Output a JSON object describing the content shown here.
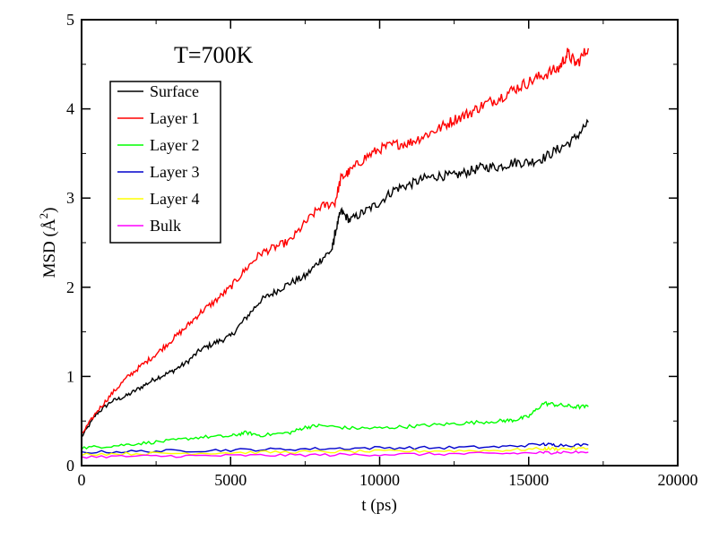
{
  "chart_data": {
    "type": "line",
    "title": "",
    "annotation": "T=700K",
    "xlabel": "t (ps)",
    "ylabel": "MSD (Å²)",
    "ylabel_parts": {
      "main": "MSD (",
      "unit_base": "Å",
      "unit_sup": "2",
      "close": ")"
    },
    "xlim": [
      0,
      20000
    ],
    "ylim": [
      0,
      5
    ],
    "x_ticks": [
      0,
      5000,
      10000,
      15000,
      20000
    ],
    "x_tick_labels": [
      "0",
      "5000",
      "10000",
      "15000",
      "20000"
    ],
    "y_ticks": [
      0,
      1,
      2,
      3,
      4,
      5
    ],
    "y_tick_labels": [
      "0",
      "1",
      "2",
      "3",
      "4",
      "5"
    ],
    "grid": false,
    "legend_position": "upper-left",
    "series": [
      {
        "name": "Surface",
        "color": "#000000",
        "x": [
          0,
          500,
          1000,
          1500,
          2000,
          2500,
          3000,
          3500,
          4000,
          4500,
          5000,
          5500,
          6000,
          6500,
          7000,
          7500,
          8000,
          8400,
          8500,
          8700,
          9000,
          9500,
          10000,
          10500,
          11000,
          11500,
          12000,
          12500,
          13000,
          13500,
          14000,
          14500,
          15000,
          15500,
          16000,
          16500,
          17000
        ],
        "y": [
          0.32,
          0.58,
          0.72,
          0.78,
          0.88,
          0.98,
          1.05,
          1.15,
          1.3,
          1.38,
          1.45,
          1.65,
          1.85,
          1.95,
          2.05,
          2.12,
          2.3,
          2.42,
          2.6,
          2.85,
          2.75,
          2.85,
          2.95,
          3.1,
          3.15,
          3.22,
          3.25,
          3.25,
          3.3,
          3.35,
          3.35,
          3.4,
          3.4,
          3.45,
          3.55,
          3.65,
          3.85
        ]
      },
      {
        "name": "Layer 1",
        "color": "#ff0000",
        "x": [
          0,
          500,
          1000,
          1500,
          2000,
          2500,
          3000,
          3500,
          4000,
          4500,
          5000,
          5500,
          6000,
          6500,
          7000,
          7500,
          8000,
          8500,
          8700,
          9000,
          9500,
          10000,
          10500,
          11000,
          11500,
          12000,
          12500,
          13000,
          13500,
          14000,
          14500,
          15000,
          15500,
          16000,
          16300,
          16600,
          17000
        ],
        "y": [
          0.35,
          0.6,
          0.8,
          0.98,
          1.12,
          1.25,
          1.4,
          1.55,
          1.72,
          1.85,
          2.0,
          2.2,
          2.38,
          2.45,
          2.52,
          2.72,
          2.9,
          2.95,
          3.22,
          3.3,
          3.45,
          3.55,
          3.6,
          3.62,
          3.7,
          3.78,
          3.88,
          3.95,
          4.05,
          4.12,
          4.22,
          4.3,
          4.38,
          4.45,
          4.62,
          4.5,
          4.68
        ]
      },
      {
        "name": "Layer 2",
        "color": "#00ff00",
        "x": [
          0,
          1000,
          2000,
          3000,
          4000,
          5000,
          5500,
          6000,
          7000,
          7500,
          8000,
          9000,
          10000,
          11000,
          12000,
          13000,
          14000,
          14500,
          15000,
          15500,
          16000,
          16500,
          17000
        ],
        "y": [
          0.2,
          0.22,
          0.25,
          0.28,
          0.32,
          0.33,
          0.37,
          0.34,
          0.37,
          0.43,
          0.45,
          0.42,
          0.42,
          0.44,
          0.46,
          0.48,
          0.5,
          0.51,
          0.55,
          0.7,
          0.68,
          0.66,
          0.66
        ]
      },
      {
        "name": "Layer 3",
        "color": "#0000cc",
        "x": [
          0,
          2000,
          4000,
          6000,
          8000,
          10000,
          12000,
          14000,
          15500,
          16000,
          17000
        ],
        "y": [
          0.15,
          0.16,
          0.17,
          0.18,
          0.19,
          0.2,
          0.2,
          0.21,
          0.24,
          0.23,
          0.23
        ]
      },
      {
        "name": "Layer 4",
        "color": "#ffff00",
        "x": [
          0,
          2000,
          4000,
          6000,
          8000,
          10000,
          12000,
          14000,
          15500,
          16000,
          17000
        ],
        "y": [
          0.13,
          0.135,
          0.14,
          0.15,
          0.155,
          0.16,
          0.165,
          0.17,
          0.19,
          0.19,
          0.19
        ]
      },
      {
        "name": "Bulk",
        "color": "#ff00ff",
        "x": [
          0,
          2000,
          4000,
          6000,
          8000,
          10000,
          12000,
          14000,
          15500,
          16000,
          17000
        ],
        "y": [
          0.1,
          0.105,
          0.11,
          0.115,
          0.12,
          0.125,
          0.13,
          0.135,
          0.145,
          0.15,
          0.15
        ]
      }
    ]
  }
}
